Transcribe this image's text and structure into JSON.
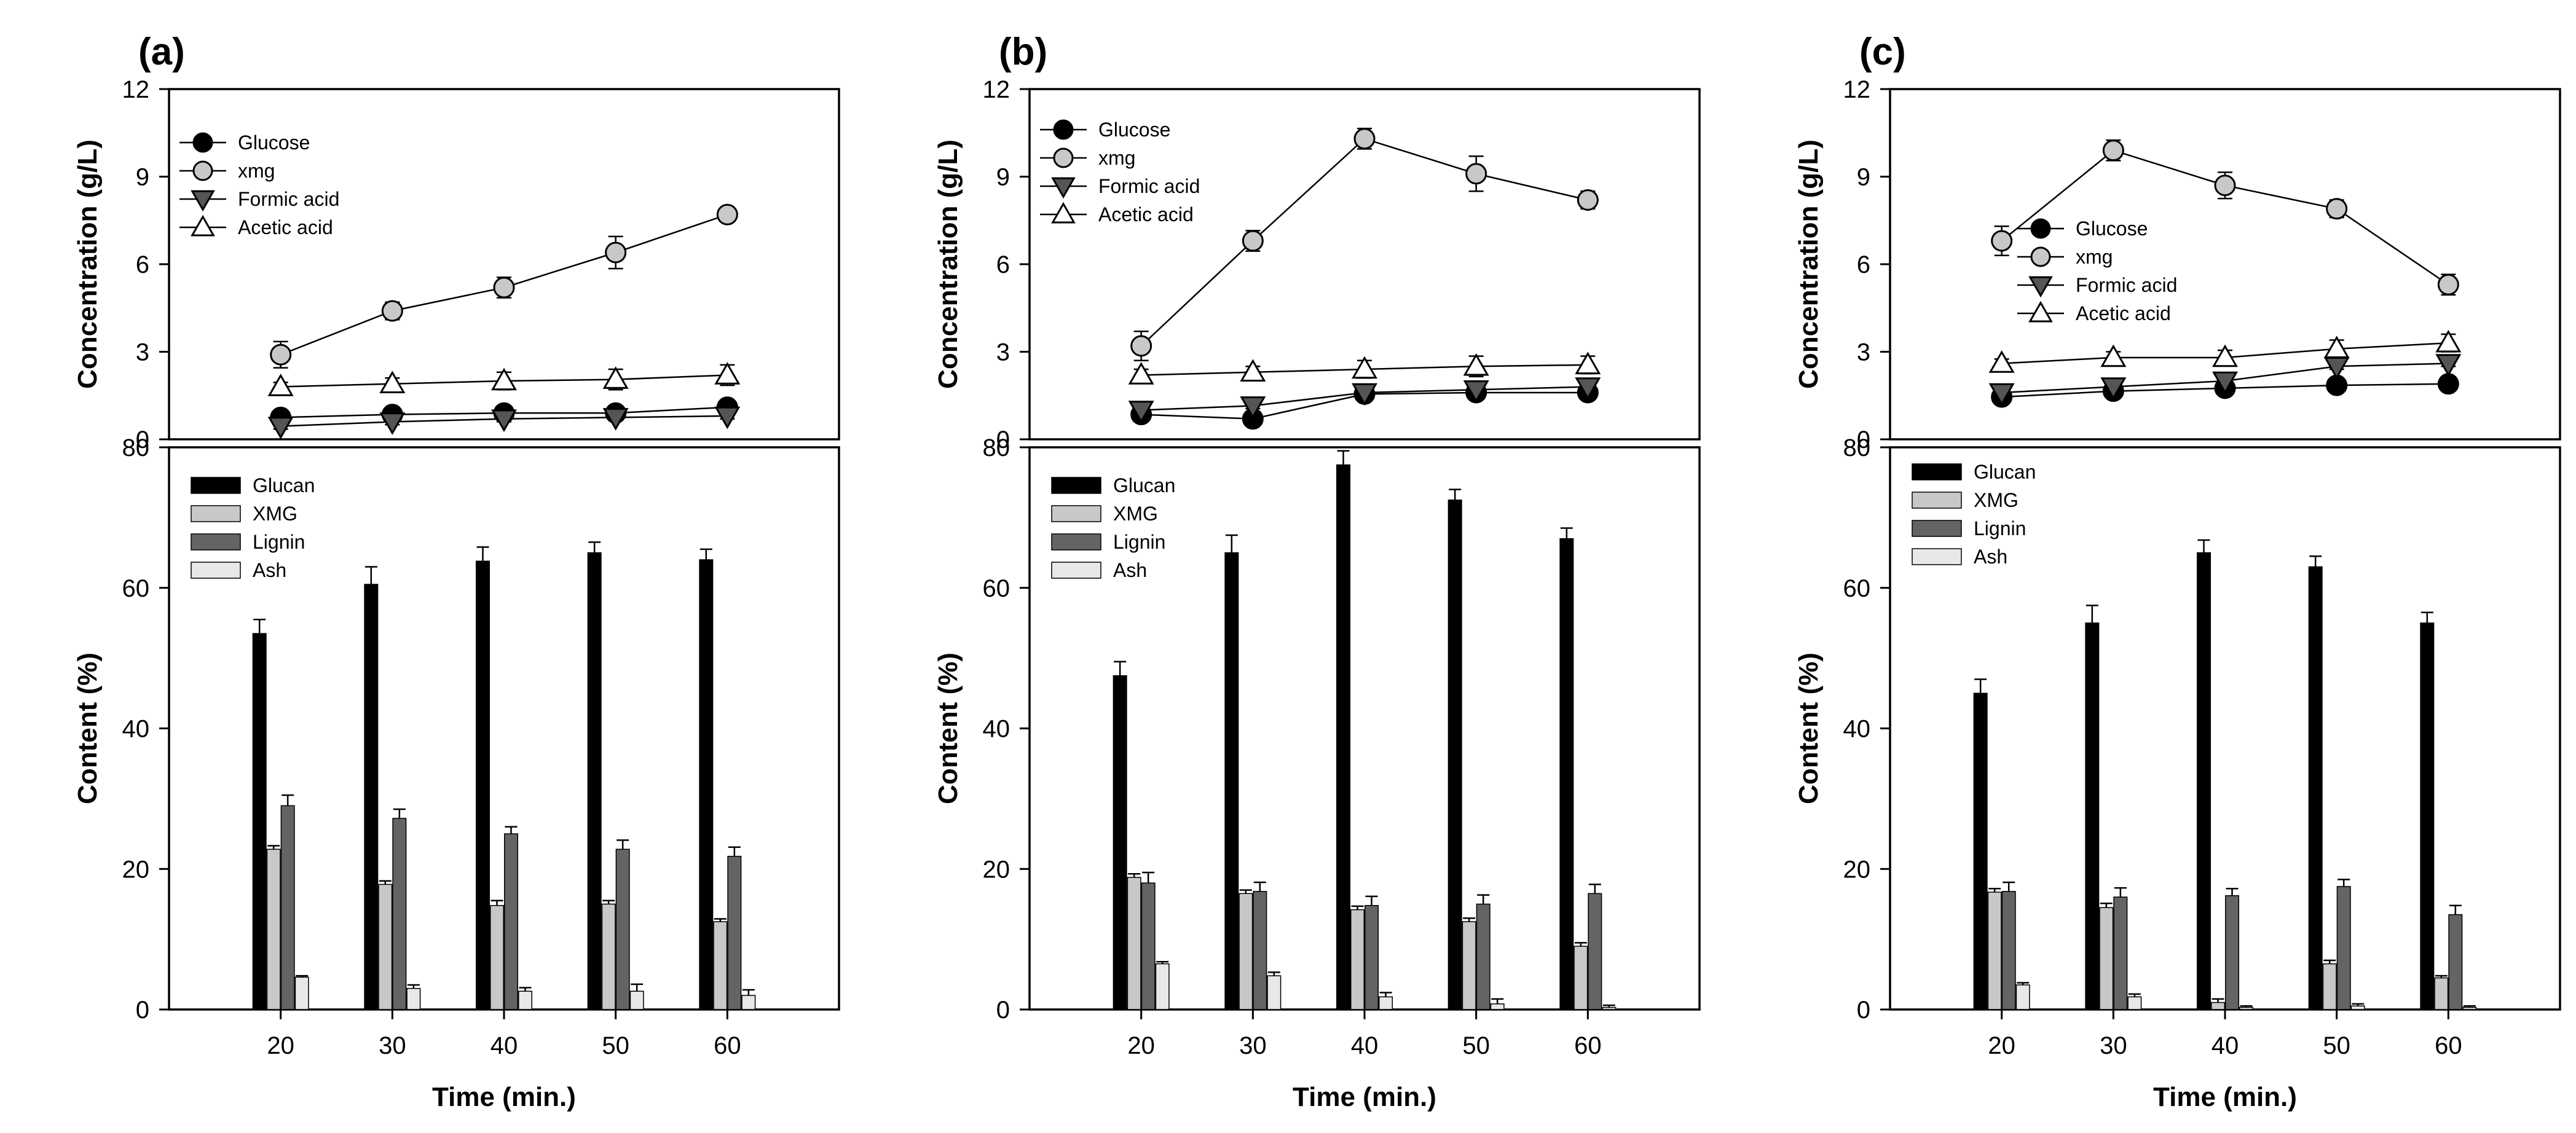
{
  "figure": {
    "panels": [
      {
        "letter": "(a)"
      },
      {
        "letter": "(b)"
      },
      {
        "letter": "(c)"
      }
    ]
  },
  "chart_data": [
    {
      "panel": "(a)",
      "part": "top",
      "type": "line",
      "xlabel": "",
      "ylabel": "Concentration (g/L)",
      "x": [
        20,
        30,
        40,
        50,
        60
      ],
      "xlim": [
        10,
        70
      ],
      "ylim": [
        0,
        12
      ],
      "yticks": [
        0,
        3,
        6,
        9,
        12
      ],
      "legend_position": "upper-left",
      "grid": false,
      "series": [
        {
          "name": "Glucose",
          "marker": "circle",
          "fill": "#000000",
          "values": [
            0.75,
            0.85,
            0.9,
            0.9,
            1.1
          ],
          "errors": [
            0.1,
            0.1,
            0.1,
            0.1,
            0.15
          ]
        },
        {
          "name": "xmg",
          "marker": "circle",
          "fill": "#c8c8c8",
          "values": [
            2.9,
            4.4,
            5.2,
            6.4,
            7.7
          ],
          "errors": [
            0.45,
            0.3,
            0.35,
            0.55,
            0.25
          ]
        },
        {
          "name": "Formic acid",
          "marker": "triangle-down",
          "fill": "#555555",
          "values": [
            0.45,
            0.6,
            0.7,
            0.75,
            0.8
          ],
          "errors": [
            0.1,
            0.1,
            0.1,
            0.1,
            0.1
          ]
        },
        {
          "name": "Acetic acid",
          "marker": "triangle-up",
          "fill": "#ffffff",
          "values": [
            1.8,
            1.9,
            2.0,
            2.05,
            2.2
          ],
          "errors": [
            0.15,
            0.2,
            0.3,
            0.35,
            0.35
          ]
        }
      ]
    },
    {
      "panel": "(a)",
      "part": "bottom",
      "type": "bar",
      "xlabel": "Time (min.)",
      "ylabel": "Content (%)",
      "categories": [
        "20",
        "30",
        "40",
        "50",
        "60"
      ],
      "ylim": [
        0,
        80
      ],
      "yticks": [
        0,
        20,
        40,
        60,
        80
      ],
      "legend_position": "upper-left",
      "grid": false,
      "series": [
        {
          "name": "Glucan",
          "fill": "#000000",
          "values": [
            53.5,
            60.5,
            63.8,
            65.0,
            64.0
          ],
          "errors": [
            2.0,
            2.5,
            2.0,
            1.5,
            1.5
          ]
        },
        {
          "name": "XMG",
          "fill": "#c8c8c8",
          "values": [
            22.8,
            17.8,
            14.8,
            15.0,
            12.5
          ],
          "errors": [
            0.5,
            0.5,
            0.7,
            0.5,
            0.4
          ]
        },
        {
          "name": "Lignin",
          "fill": "#646464",
          "values": [
            29.0,
            27.2,
            25.0,
            22.8,
            21.8
          ],
          "errors": [
            1.5,
            1.3,
            1.0,
            1.3,
            1.3
          ]
        },
        {
          "name": "Ash",
          "fill": "#e8e8e8",
          "values": [
            4.6,
            3.0,
            2.6,
            2.6,
            2.0
          ],
          "errors": [
            0.2,
            0.5,
            0.5,
            1.0,
            0.8
          ]
        }
      ]
    },
    {
      "panel": "(b)",
      "part": "top",
      "type": "line",
      "xlabel": "",
      "ylabel": "Concentration (g/L)",
      "x": [
        20,
        30,
        40,
        50,
        60
      ],
      "xlim": [
        10,
        70
      ],
      "ylim": [
        0,
        12
      ],
      "yticks": [
        0,
        3,
        6,
        9,
        12
      ],
      "legend_position": "upper-left",
      "grid": false,
      "series": [
        {
          "name": "Glucose",
          "marker": "circle",
          "fill": "#000000",
          "values": [
            0.85,
            0.7,
            1.55,
            1.6,
            1.6
          ],
          "errors": [
            0.1,
            0.1,
            0.1,
            0.1,
            0.1
          ]
        },
        {
          "name": "xmg",
          "marker": "circle",
          "fill": "#c8c8c8",
          "values": [
            3.2,
            6.8,
            10.3,
            9.1,
            8.2
          ],
          "errors": [
            0.5,
            0.35,
            0.35,
            0.6,
            0.3
          ]
        },
        {
          "name": "Formic acid",
          "marker": "triangle-down",
          "fill": "#555555",
          "values": [
            1.0,
            1.15,
            1.6,
            1.7,
            1.8
          ],
          "errors": [
            0.1,
            0.1,
            0.1,
            0.1,
            0.1
          ]
        },
        {
          "name": "Acetic acid",
          "marker": "triangle-up",
          "fill": "#ffffff",
          "values": [
            2.2,
            2.3,
            2.4,
            2.5,
            2.55
          ],
          "errors": [
            0.2,
            0.2,
            0.3,
            0.35,
            0.3
          ]
        }
      ]
    },
    {
      "panel": "(b)",
      "part": "bottom",
      "type": "bar",
      "xlabel": "Time (min.)",
      "ylabel": "Content (%)",
      "categories": [
        "20",
        "30",
        "40",
        "50",
        "60"
      ],
      "ylim": [
        0,
        80
      ],
      "yticks": [
        0,
        20,
        40,
        60,
        80
      ],
      "legend_position": "upper-left",
      "grid": false,
      "series": [
        {
          "name": "Glucan",
          "fill": "#000000",
          "values": [
            47.5,
            65.0,
            77.5,
            72.5,
            67.0
          ],
          "errors": [
            2.0,
            2.5,
            2.0,
            1.5,
            1.5
          ]
        },
        {
          "name": "XMG",
          "fill": "#c8c8c8",
          "values": [
            18.8,
            16.5,
            14.2,
            12.5,
            9.0
          ],
          "errors": [
            0.5,
            0.5,
            0.5,
            0.5,
            0.5
          ]
        },
        {
          "name": "Lignin",
          "fill": "#646464",
          "values": [
            18.0,
            16.8,
            14.8,
            15.0,
            16.5
          ],
          "errors": [
            1.5,
            1.3,
            1.3,
            1.3,
            1.3
          ]
        },
        {
          "name": "Ash",
          "fill": "#e8e8e8",
          "values": [
            6.5,
            4.8,
            1.8,
            0.8,
            0.3
          ],
          "errors": [
            0.3,
            0.5,
            0.6,
            0.7,
            0.3
          ]
        }
      ]
    },
    {
      "panel": "(c)",
      "part": "top",
      "type": "line",
      "xlabel": "",
      "ylabel": "Concentration (g/L)",
      "x": [
        20,
        30,
        40,
        50,
        60
      ],
      "xlim": [
        10,
        70
      ],
      "ylim": [
        0,
        12
      ],
      "yticks": [
        0,
        3,
        6,
        9,
        12
      ],
      "legend_position": "center-left",
      "grid": false,
      "series": [
        {
          "name": "Glucose",
          "marker": "circle",
          "fill": "#000000",
          "values": [
            1.45,
            1.65,
            1.75,
            1.85,
            1.9
          ],
          "errors": [
            0.1,
            0.1,
            0.1,
            0.1,
            0.1
          ]
        },
        {
          "name": "xmg",
          "marker": "circle",
          "fill": "#c8c8c8",
          "values": [
            6.8,
            9.9,
            8.7,
            7.9,
            5.3
          ],
          "errors": [
            0.5,
            0.35,
            0.45,
            0.3,
            0.35
          ]
        },
        {
          "name": "Formic acid",
          "marker": "triangle-down",
          "fill": "#555555",
          "values": [
            1.6,
            1.8,
            2.0,
            2.5,
            2.6
          ],
          "errors": [
            0.1,
            0.1,
            0.1,
            0.1,
            0.1
          ]
        },
        {
          "name": "Acetic acid",
          "marker": "triangle-up",
          "fill": "#ffffff",
          "values": [
            2.6,
            2.8,
            2.8,
            3.1,
            3.3
          ],
          "errors": [
            0.15,
            0.2,
            0.25,
            0.3,
            0.3
          ]
        }
      ]
    },
    {
      "panel": "(c)",
      "part": "bottom",
      "type": "bar",
      "xlabel": "Time (min.)",
      "ylabel": "Content (%)",
      "categories": [
        "20",
        "30",
        "40",
        "50",
        "60"
      ],
      "ylim": [
        0,
        80
      ],
      "yticks": [
        0,
        20,
        40,
        60,
        80
      ],
      "legend_position": "upper-left",
      "grid": false,
      "series": [
        {
          "name": "Glucan",
          "fill": "#000000",
          "values": [
            45.0,
            55.0,
            65.0,
            63.0,
            55.0
          ],
          "errors": [
            2.0,
            2.5,
            1.8,
            1.5,
            1.5
          ]
        },
        {
          "name": "XMG",
          "fill": "#c8c8c8",
          "values": [
            16.7,
            14.5,
            1.0,
            6.5,
            4.5
          ],
          "errors": [
            0.5,
            0.6,
            0.5,
            0.5,
            0.3
          ]
        },
        {
          "name": "Lignin",
          "fill": "#646464",
          "values": [
            16.8,
            16.0,
            16.2,
            17.5,
            13.5
          ],
          "errors": [
            1.3,
            1.3,
            1.0,
            1.0,
            1.3
          ]
        },
        {
          "name": "Ash",
          "fill": "#e8e8e8",
          "values": [
            3.5,
            1.8,
            0.3,
            0.5,
            0.3
          ],
          "errors": [
            0.3,
            0.4,
            0.2,
            0.3,
            0.2
          ]
        }
      ]
    }
  ]
}
